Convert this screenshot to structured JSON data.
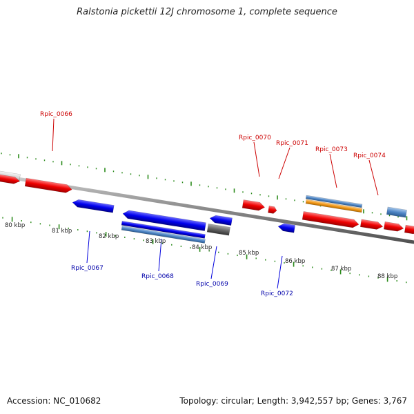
{
  "title": "Ralstonia pickettii 12J chromosome 1, complete sequence",
  "footer": {
    "accession": "Accession: NC_010682",
    "summary": "Topology: circular; Length: 3,942,557 bp; Genes: 3,767"
  },
  "colors": {
    "forward_gene": "#ee0000",
    "reverse_gene": "#0000dd",
    "forward_label": "#cc0000",
    "reverse_label": "#0000aa",
    "steel_feature": "#4f86c6",
    "orange_feature": "#f39a1a",
    "gray_feature": "#666666",
    "light_feature": "#d4d4d4",
    "backbone": "#8a8a8a",
    "tick": "#2a8a1a"
  },
  "scale_labels": [
    "80 kbp",
    "81 kbp",
    "82 kbp",
    "83 kbp",
    "84 kbp",
    "85 kbp",
    "86 kbp",
    "87 kbp",
    "88 kbp"
  ],
  "forward_labels": [
    "Rpic_0066",
    "Rpic_0070",
    "Rpic_0071",
    "Rpic_0073",
    "Rpic_0074"
  ],
  "reverse_labels": [
    "Rpic_0067",
    "Rpic_0068",
    "Rpic_0069",
    "Rpic_0072"
  ]
}
